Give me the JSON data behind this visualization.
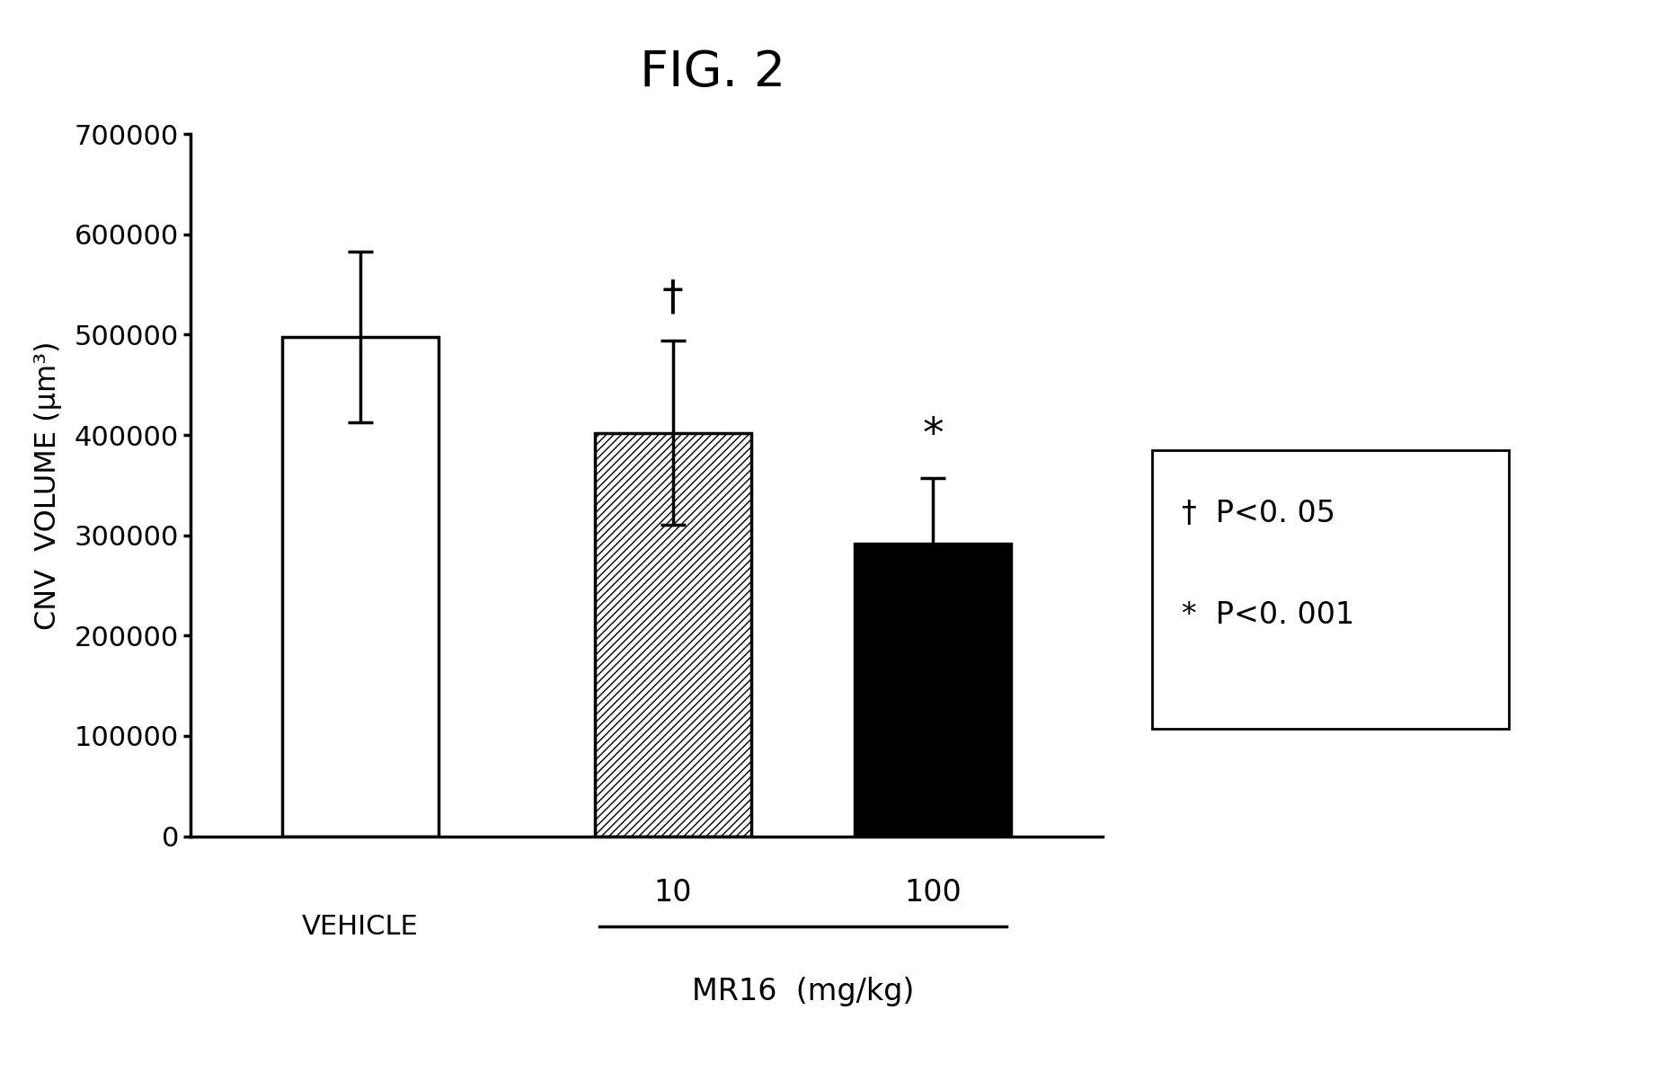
{
  "title": "FIG. 2",
  "ylabel": "CNV  VOLUME (μm³)",
  "categories": [
    "VEHICLE",
    "10",
    "100"
  ],
  "values": [
    498000,
    402000,
    292000
  ],
  "errors": [
    85000,
    92000,
    65000
  ],
  "bar_colors": [
    "white",
    "hatch",
    "black"
  ],
  "ylim": [
    0,
    700000
  ],
  "yticks": [
    0,
    100000,
    200000,
    300000,
    400000,
    500000,
    600000,
    700000
  ],
  "mr16_label": "MR16  (mg/kg)",
  "annotation1": "†",
  "annotation2": "*",
  "legend_text1": "†  P<0. 05",
  "legend_text2": "*  P<0. 001",
  "background_color": "white",
  "bar_edge_color": "black",
  "bar_width": 0.6,
  "title_fontsize": 40,
  "label_fontsize": 23,
  "tick_fontsize": 22,
  "annot_fontsize": 34,
  "legend_fontsize": 24
}
